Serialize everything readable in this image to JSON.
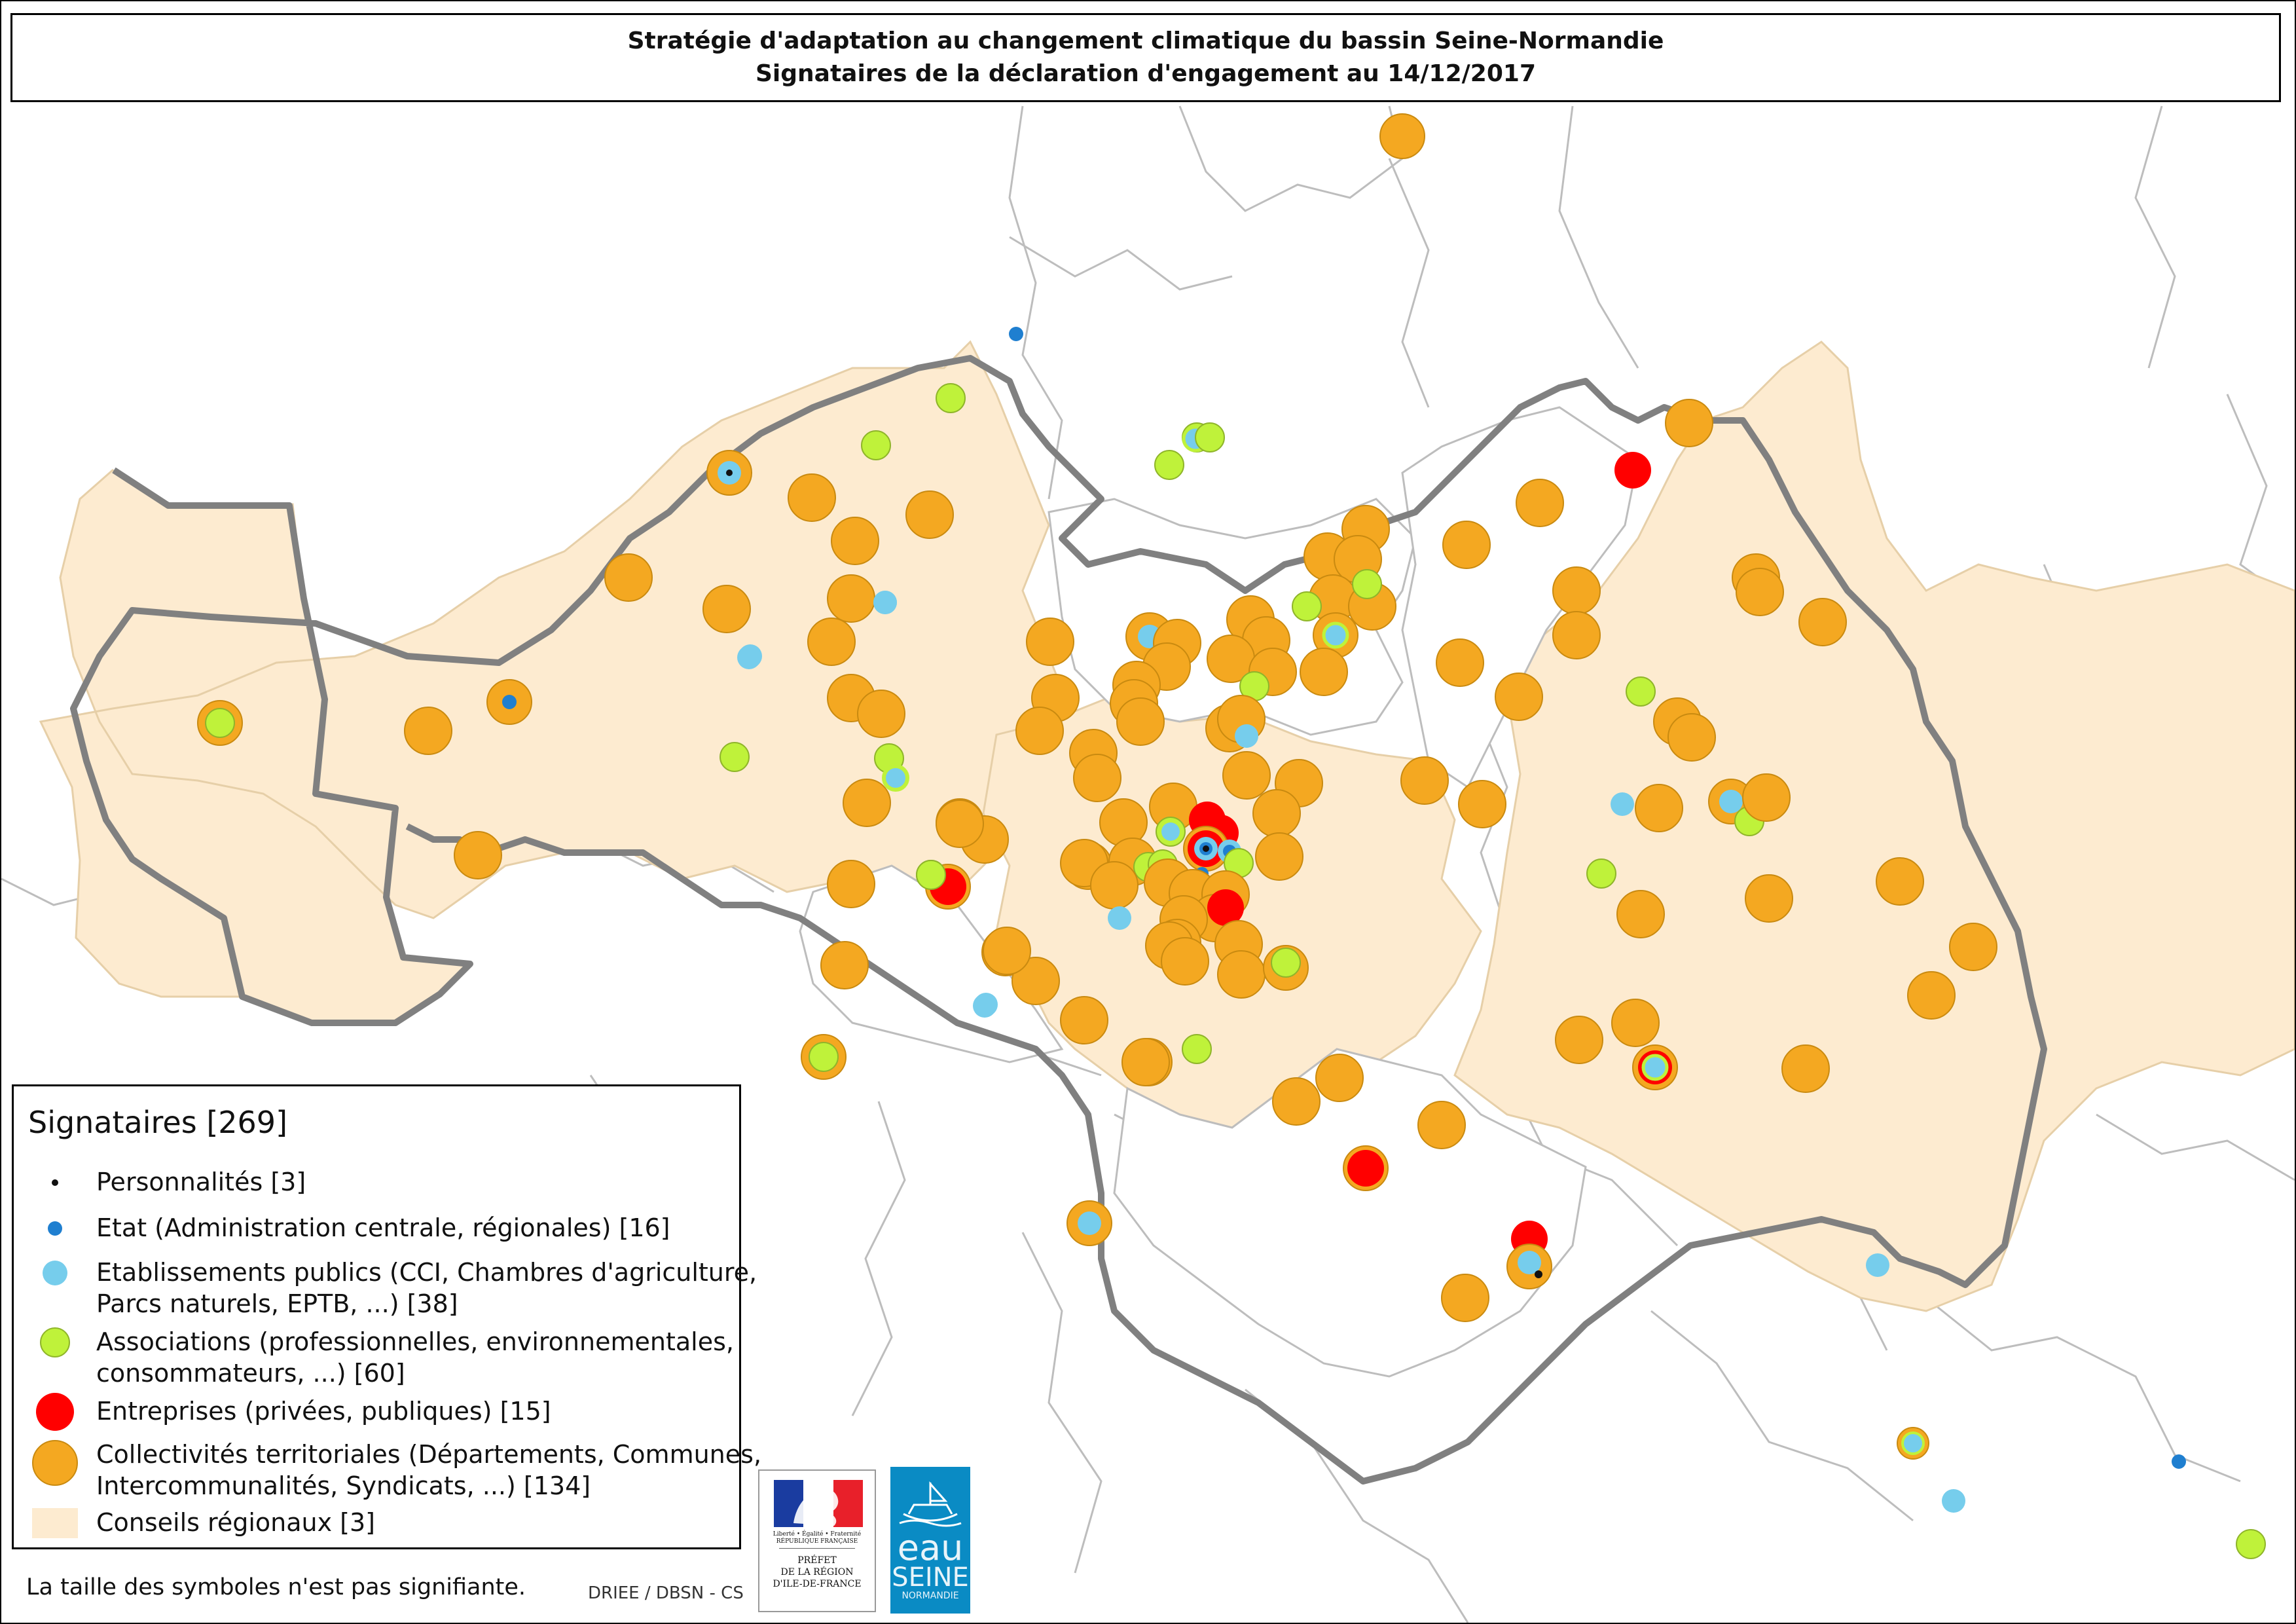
{
  "title": {
    "line1": "Stratégie d'adaptation au changement climatique du bassin Seine-Normandie",
    "line2": "Signataires de la déclaration d'engagement au 14/12/2017"
  },
  "colors": {
    "personnalite": "#111111",
    "etat": "#1f7fd0",
    "etablissement": "#76cdec",
    "association": "#bff23a",
    "entreprise": "#ff0000",
    "collectivite": "#f4a821",
    "conseil_regional": "#fdebd0",
    "basin_border": "#808080",
    "admin_border": "#bbbbbb"
  },
  "legend": {
    "title": "Signataires [269]",
    "items": [
      {
        "key": "personnalite",
        "line1": "Personnalités [3]",
        "line2": ""
      },
      {
        "key": "etat",
        "line1": "Etat (Administration centrale, régionales) [16]",
        "line2": ""
      },
      {
        "key": "etablissement",
        "line1": "Etablissements publics (CCI, Chambres d'agriculture,",
        "line2": "Parcs naturels, EPTB, ...) [38]"
      },
      {
        "key": "association",
        "line1": "Associations (professionnelles, environnementales,",
        "line2": "consommateurs, ...) [60]"
      },
      {
        "key": "entreprise",
        "line1": "Entreprises (privées, publiques) [15]",
        "line2": ""
      },
      {
        "key": "collectivite",
        "line1": "Collectivités territoriales (Départements, Communes,",
        "line2": "Intercommunalités, Syndicats, ...) [134]"
      },
      {
        "key": "conseil_regional",
        "line1": "Conseils régionaux [3]",
        "line2": ""
      }
    ]
  },
  "note": "La taille des symboles n'est pas signifiante.",
  "credit": "DRIEE / DBSN - CS",
  "logos": {
    "prefet": {
      "republique": "Liberté • Égalité • Fraternité RÉPUBLIQUE FRANÇAISE",
      "line1": "PRÉFET",
      "line2": "DE LA RÉGION",
      "line3": "D'ILE-DE-FRANCE"
    },
    "eau": {
      "w1": "eau",
      "w2": "SEINE",
      "w3": "NORMANDIE"
    }
  },
  "map_labels": []
}
